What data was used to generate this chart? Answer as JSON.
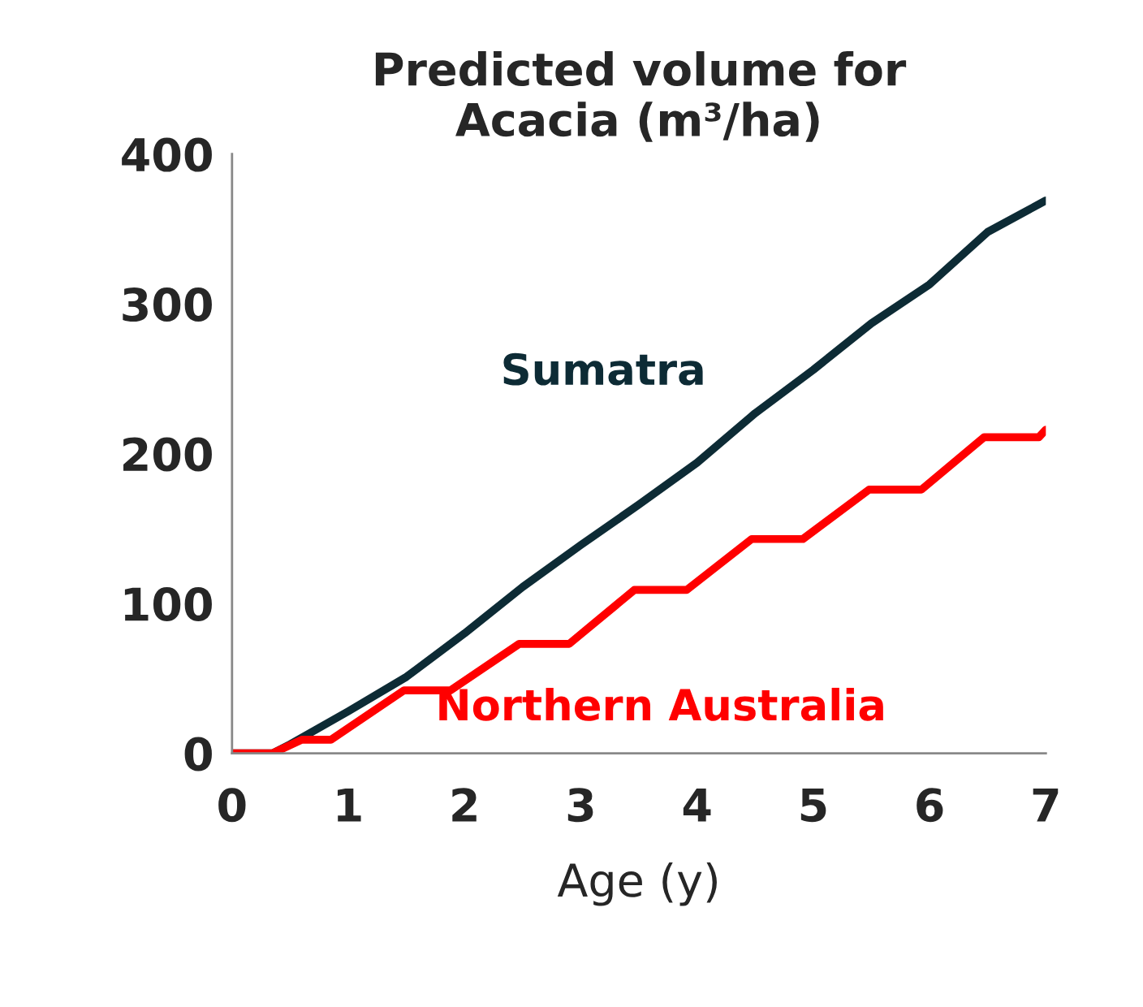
{
  "chart_data": {
    "type": "line",
    "title": "Predicted volume for\nAcacia (m³/ha)",
    "xlabel": "Age (y)",
    "xlim": [
      0,
      7
    ],
    "ylim": [
      0,
      400
    ],
    "xticks": [
      0,
      1,
      2,
      3,
      4,
      5,
      6,
      7
    ],
    "yticks": [
      0,
      100,
      200,
      300,
      400
    ],
    "grid": false,
    "legend": false,
    "marker": "none",
    "line_style": "solid",
    "series": [
      {
        "name": "Sumatra",
        "color": "#0d2b35",
        "x": [
          0,
          0.35,
          0.5,
          1,
          1.5,
          2,
          2.5,
          3,
          3.5,
          4,
          4.5,
          5,
          5.5,
          6,
          6.5,
          7
        ],
        "values": [
          0,
          0,
          6,
          28,
          51,
          80,
          111,
          139,
          166,
          194,
          227,
          256,
          287,
          313,
          348,
          369
        ]
      },
      {
        "name": "Northern Australia",
        "color": "#ff0000",
        "x": [
          0,
          0.35,
          0.6,
          0.85,
          1.48,
          1.88,
          2.47,
          2.9,
          3.46,
          3.91,
          4.47,
          4.91,
          5.48,
          5.93,
          6.47,
          6.94,
          7
        ],
        "values": [
          0,
          0,
          9,
          9,
          42,
          42,
          73,
          73,
          109,
          109,
          143,
          143,
          176,
          176,
          211,
          211,
          216
        ]
      }
    ]
  }
}
